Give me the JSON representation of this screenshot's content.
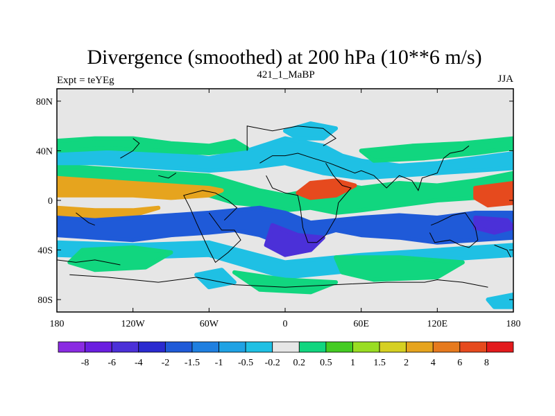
{
  "chart_data": {
    "type": "heatmap",
    "title": "Divergence (smoothed) at 200 hPa (10**6 m/s)",
    "subtitle_left": "Expt = teYEg",
    "subtitle_center": "421_1_MaBP",
    "subtitle_right": "JJA",
    "xlabel": "",
    "ylabel": "",
    "xlim": [
      -180,
      180
    ],
    "ylim": [
      -90,
      90
    ],
    "x_ticks": [
      {
        "value": -180,
        "label": "180"
      },
      {
        "value": -120,
        "label": "120W"
      },
      {
        "value": -60,
        "label": "60W"
      },
      {
        "value": 0,
        "label": "0"
      },
      {
        "value": 60,
        "label": "60E"
      },
      {
        "value": 120,
        "label": "120E"
      },
      {
        "value": 180,
        "label": "180"
      }
    ],
    "y_ticks": [
      {
        "value": 80,
        "label": "80N"
      },
      {
        "value": 40,
        "label": "40N"
      },
      {
        "value": 0,
        "label": "0"
      },
      {
        "value": -40,
        "label": "40S"
      },
      {
        "value": -80,
        "label": "80S"
      }
    ],
    "levels": [
      -8,
      -6,
      -4,
      -2,
      -1.5,
      -1,
      -0.5,
      -0.2,
      0.2,
      0.5,
      1,
      1.5,
      2,
      4,
      6,
      8
    ],
    "level_labels": [
      "-8",
      "-6",
      "-4",
      "-2",
      "-1.5",
      "-1",
      "-0.5",
      "-0.2",
      "0.2",
      "0.5",
      "1",
      "1.5",
      "2",
      "4",
      "6",
      "8"
    ],
    "colors": [
      "#8a2be2",
      "#6a1ee0",
      "#4b30d8",
      "#2a2ad0",
      "#1f5ad8",
      "#1f7fe0",
      "#1fa2e4",
      "#1fc0e4",
      "#e6e6e6",
      "#11d67f",
      "#44cc22",
      "#99dd22",
      "#d6d022",
      "#e6a41e",
      "#e67a1e",
      "#e64a1e",
      "#e31a1c"
    ],
    "contours": [
      {
        "level": "pos1",
        "band": [
          [
            -180,
            28
          ],
          [
            -150,
            26
          ],
          [
            -120,
            24
          ],
          [
            -90,
            22
          ],
          [
            -60,
            20
          ],
          [
            -40,
            14
          ],
          [
            -20,
            8
          ],
          [
            0,
            4
          ],
          [
            20,
            8
          ],
          [
            40,
            14
          ],
          [
            60,
            10
          ],
          [
            90,
            14
          ],
          [
            120,
            12
          ],
          [
            150,
            16
          ],
          [
            180,
            22
          ],
          [
            180,
            0
          ],
          [
            150,
            2
          ],
          [
            120,
            0
          ],
          [
            90,
            -4
          ],
          [
            60,
            -8
          ],
          [
            40,
            -10
          ],
          [
            20,
            -6
          ],
          [
            0,
            -8
          ],
          [
            -20,
            -4
          ],
          [
            -40,
            -2
          ],
          [
            -60,
            4
          ],
          [
            -90,
            6
          ],
          [
            -120,
            8
          ],
          [
            -150,
            10
          ],
          [
            -180,
            8
          ]
        ]
      },
      {
        "level": "pos2",
        "band": [
          [
            -180,
            18
          ],
          [
            -150,
            16
          ],
          [
            -120,
            14
          ],
          [
            -90,
            12
          ],
          [
            -60,
            10
          ],
          [
            -50,
            8
          ],
          [
            -60,
            4
          ],
          [
            -90,
            2
          ],
          [
            -120,
            4
          ],
          [
            -150,
            4
          ],
          [
            -180,
            4
          ]
        ]
      },
      {
        "level": "pos3",
        "band": [
          [
            20,
            14
          ],
          [
            40,
            16
          ],
          [
            55,
            12
          ],
          [
            40,
            4
          ],
          [
            20,
            2
          ],
          [
            10,
            6
          ]
        ]
      },
      {
        "level": "pos3",
        "band": [
          [
            150,
            10
          ],
          [
            180,
            14
          ],
          [
            180,
            -2
          ],
          [
            160,
            -4
          ],
          [
            150,
            2
          ]
        ]
      },
      {
        "level": "pos2",
        "band": [
          [
            -180,
            -6
          ],
          [
            -150,
            -8
          ],
          [
            -120,
            -8
          ],
          [
            -100,
            -6
          ],
          [
            -120,
            -12
          ],
          [
            -150,
            -14
          ],
          [
            -180,
            -12
          ]
        ]
      },
      {
        "level": "neg2",
        "band": [
          [
            -180,
            -14
          ],
          [
            -150,
            -16
          ],
          [
            -120,
            -14
          ],
          [
            -90,
            -12
          ],
          [
            -60,
            -10
          ],
          [
            -40,
            -8
          ],
          [
            -20,
            -6
          ],
          [
            0,
            -10
          ],
          [
            20,
            -18
          ],
          [
            40,
            -16
          ],
          [
            60,
            -14
          ],
          [
            90,
            -12
          ],
          [
            120,
            -14
          ],
          [
            150,
            -10
          ],
          [
            180,
            -10
          ],
          [
            180,
            -30
          ],
          [
            150,
            -32
          ],
          [
            120,
            -34
          ],
          [
            90,
            -30
          ],
          [
            60,
            -28
          ],
          [
            40,
            -24
          ],
          [
            20,
            -30
          ],
          [
            0,
            -36
          ],
          [
            -20,
            -28
          ],
          [
            -40,
            -24
          ],
          [
            -60,
            -26
          ],
          [
            -90,
            -28
          ],
          [
            -120,
            -32
          ],
          [
            -150,
            -30
          ],
          [
            -180,
            -28
          ]
        ]
      },
      {
        "level": "neg3",
        "band": [
          [
            -10,
            -20
          ],
          [
            10,
            -28
          ],
          [
            30,
            -30
          ],
          [
            20,
            -40
          ],
          [
            0,
            -44
          ],
          [
            -15,
            -36
          ]
        ]
      },
      {
        "level": "neg3",
        "band": [
          [
            150,
            -14
          ],
          [
            175,
            -16
          ],
          [
            180,
            -22
          ],
          [
            165,
            -26
          ],
          [
            150,
            -22
          ]
        ]
      },
      {
        "level": "neg1",
        "band": [
          [
            -180,
            44
          ],
          [
            -150,
            42
          ],
          [
            -120,
            42
          ],
          [
            -90,
            38
          ],
          [
            -60,
            34
          ],
          [
            -30,
            40
          ],
          [
            0,
            50
          ],
          [
            30,
            44
          ],
          [
            45,
            36
          ],
          [
            60,
            32
          ],
          [
            90,
            28
          ],
          [
            120,
            30
          ],
          [
            150,
            34
          ],
          [
            180,
            38
          ],
          [
            180,
            26
          ],
          [
            150,
            24
          ],
          [
            120,
            22
          ],
          [
            90,
            20
          ],
          [
            60,
            18
          ],
          [
            30,
            22
          ],
          [
            0,
            30
          ],
          [
            -30,
            26
          ],
          [
            -60,
            24
          ],
          [
            -90,
            26
          ],
          [
            -120,
            28
          ],
          [
            -150,
            30
          ],
          [
            -180,
            30
          ]
        ]
      },
      {
        "level": "neg1",
        "band": [
          [
            -180,
            -34
          ],
          [
            -120,
            -36
          ],
          [
            -60,
            -34
          ],
          [
            0,
            -50
          ],
          [
            60,
            -44
          ],
          [
            120,
            -40
          ],
          [
            180,
            -36
          ],
          [
            180,
            -44
          ],
          [
            120,
            -48
          ],
          [
            60,
            -56
          ],
          [
            0,
            -62
          ],
          [
            -60,
            -44
          ],
          [
            -120,
            -46
          ],
          [
            -180,
            -44
          ]
        ]
      },
      {
        "level": "pos1",
        "band": [
          [
            -160,
            -40
          ],
          [
            -120,
            -38
          ],
          [
            -90,
            -42
          ],
          [
            -110,
            -54
          ],
          [
            -150,
            -56
          ],
          [
            -170,
            -50
          ]
        ]
      },
      {
        "level": "pos1",
        "band": [
          [
            40,
            -46
          ],
          [
            90,
            -46
          ],
          [
            140,
            -50
          ],
          [
            120,
            -62
          ],
          [
            70,
            -64
          ],
          [
            45,
            -58
          ]
        ]
      },
      {
        "level": "pos1",
        "band": [
          [
            -40,
            -58
          ],
          [
            0,
            -64
          ],
          [
            40,
            -66
          ],
          [
            20,
            -74
          ],
          [
            -20,
            -72
          ]
        ]
      },
      {
        "level": "pos1",
        "band": [
          [
            -180,
            48
          ],
          [
            -150,
            50
          ],
          [
            -120,
            50
          ],
          [
            -90,
            46
          ],
          [
            -60,
            44
          ],
          [
            -40,
            48
          ],
          [
            -30,
            42
          ],
          [
            -60,
            38
          ],
          [
            -100,
            40
          ],
          [
            -140,
            42
          ],
          [
            -180,
            40
          ]
        ]
      },
      {
        "level": "pos1",
        "band": [
          [
            60,
            40
          ],
          [
            100,
            44
          ],
          [
            140,
            46
          ],
          [
            180,
            50
          ],
          [
            180,
            42
          ],
          [
            150,
            38
          ],
          [
            110,
            34
          ],
          [
            70,
            32
          ]
        ]
      },
      {
        "level": "neg1",
        "band": [
          [
            0,
            56
          ],
          [
            20,
            62
          ],
          [
            40,
            58
          ],
          [
            30,
            50
          ],
          [
            10,
            50
          ]
        ]
      },
      {
        "level": "neg1",
        "band": [
          [
            -70,
            -60
          ],
          [
            -50,
            -56
          ],
          [
            -40,
            -66
          ],
          [
            -60,
            -70
          ]
        ]
      },
      {
        "level": "neg1",
        "band": [
          [
            160,
            -80
          ],
          [
            180,
            -76
          ],
          [
            180,
            -86
          ],
          [
            165,
            -86
          ]
        ]
      }
    ],
    "coastlines": [
      [
        [
          -165,
          -10
        ],
        [
          -155,
          -18
        ],
        [
          -150,
          -20
        ]
      ],
      [
        [
          -60,
          -10
        ],
        [
          -50,
          -24
        ],
        [
          -40,
          -24
        ],
        [
          -35,
          -32
        ],
        [
          -45,
          -42
        ],
        [
          -55,
          -50
        ],
        [
          -60,
          -40
        ],
        [
          -70,
          -18
        ],
        [
          -75,
          -6
        ],
        [
          -80,
          4
        ],
        [
          -65,
          8
        ],
        [
          -55,
          6
        ],
        [
          -45,
          0
        ],
        [
          -38,
          -6
        ],
        [
          -48,
          -16
        ]
      ],
      [
        [
          -20,
          30
        ],
        [
          -10,
          36
        ],
        [
          0,
          36
        ],
        [
          10,
          38
        ],
        [
          22,
          34
        ],
        [
          35,
          30
        ],
        [
          45,
          26
        ],
        [
          55,
          22
        ],
        [
          60,
          24
        ],
        [
          70,
          20
        ],
        [
          80,
          10
        ],
        [
          90,
          20
        ],
        [
          100,
          16
        ],
        [
          105,
          8
        ],
        [
          108,
          18
        ],
        [
          120,
          22
        ],
        [
          125,
          34
        ],
        [
          130,
          38
        ],
        [
          140,
          40
        ],
        [
          145,
          44
        ]
      ],
      [
        [
          -15,
          20
        ],
        [
          -10,
          10
        ],
        [
          0,
          6
        ],
        [
          10,
          4
        ],
        [
          12,
          -6
        ],
        [
          14,
          -22
        ],
        [
          18,
          -34
        ],
        [
          25,
          -34
        ],
        [
          32,
          -28
        ],
        [
          40,
          -14
        ],
        [
          42,
          -2
        ],
        [
          52,
          10
        ],
        [
          45,
          12
        ],
        [
          38,
          20
        ],
        [
          32,
          30
        ]
      ],
      [
        [
          -30,
          40
        ],
        [
          -30,
          60
        ],
        [
          -10,
          56
        ],
        [
          10,
          60
        ],
        [
          30,
          58
        ],
        [
          40,
          50
        ],
        [
          30,
          44
        ]
      ],
      [
        [
          115,
          -20
        ],
        [
          120,
          -18
        ],
        [
          132,
          -12
        ],
        [
          142,
          -10
        ],
        [
          150,
          -22
        ],
        [
          152,
          -32
        ],
        [
          145,
          -38
        ],
        [
          138,
          -36
        ],
        [
          130,
          -32
        ],
        [
          118,
          -34
        ],
        [
          114,
          -26
        ]
      ],
      [
        [
          165,
          -36
        ],
        [
          175,
          -40
        ],
        [
          178,
          -46
        ]
      ],
      [
        [
          -170,
          -60
        ],
        [
          -140,
          -62
        ],
        [
          -100,
          -66
        ],
        [
          -70,
          -62
        ],
        [
          -40,
          -68
        ],
        [
          0,
          -70
        ],
        [
          40,
          -68
        ],
        [
          80,
          -66
        ],
        [
          110,
          -66
        ],
        [
          120,
          -64
        ],
        [
          140,
          -66
        ],
        [
          160,
          -70
        ]
      ],
      [
        [
          -180,
          -48
        ],
        [
          -165,
          -50
        ],
        [
          -150,
          -48
        ],
        [
          -130,
          -52
        ]
      ],
      [
        [
          -130,
          34
        ],
        [
          -120,
          40
        ],
        [
          -115,
          46
        ],
        [
          -120,
          50
        ]
      ],
      [
        [
          -100,
          20
        ],
        [
          -92,
          18
        ],
        [
          -86,
          22
        ]
      ]
    ]
  }
}
